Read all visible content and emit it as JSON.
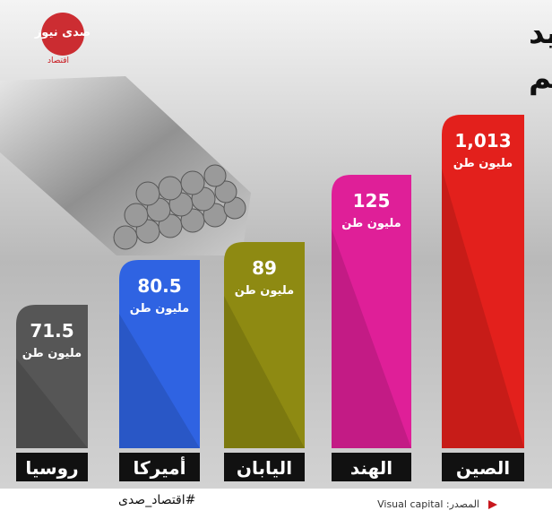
{
  "header": {
    "title_line1": "كبار منتجي الحديد",
    "title_line2": "في العالم"
  },
  "logo": {
    "text": "صدى نيوز",
    "subtext": "اقتصاد"
  },
  "items": [
    {
      "country": "الصين",
      "value": "1,013",
      "unit": "مليون طن",
      "color": "#e3201c"
    },
    {
      "country": "الهند",
      "value": "125",
      "unit": "مليون طن",
      "color": "#df1f98"
    },
    {
      "country": "اليابان",
      "value": "89",
      "unit": "مليون طن",
      "color": "#8e8a12"
    },
    {
      "country": "أميركا",
      "value": "80.5",
      "unit": "مليون طن",
      "color": "#2f63e2"
    },
    {
      "country": "روسيا",
      "value": "71.5",
      "unit": "مليون طن",
      "color": "#565656"
    }
  ],
  "footer": {
    "hashtag": "#اقتصاد_صدى",
    "source": "المصدر: Visual capital"
  }
}
